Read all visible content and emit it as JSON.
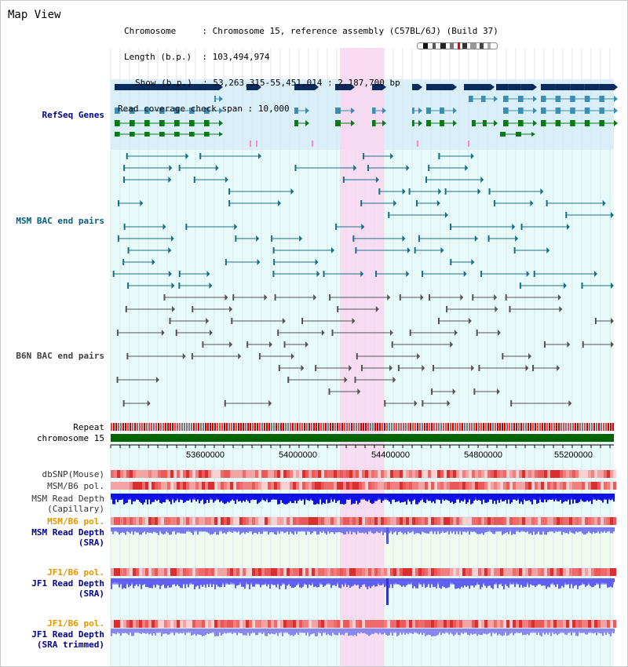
{
  "title": "Map View",
  "info": {
    "chromosome_key": "Chromosome",
    "chromosome_val": "Chromosome 15, reference assembly (C57BL/6J) (Build 37)",
    "length_key": "Length (b.p.)",
    "length_val": "103,494,974",
    "show_key": "Show (b.p.)",
    "show_val": "53,263,315-55,451,014 : 2,187,700 bp",
    "coverage_key": "Read coverage check span",
    "coverage_val": "10,000"
  },
  "tracks": {
    "refseq": "RefSeq Genes",
    "msm_bac": "MSM BAC end pairs",
    "b6n_bac": "B6N BAC end pairs",
    "repeat": "Repeat",
    "chromosome": "chromosome 15",
    "dbsnp": "dbSNP(Mouse)",
    "msm_b6_pol_1": "MSM/B6 pol.",
    "msm_depth_cap_1": "MSM Read Depth",
    "msm_depth_cap_2": "(Capillary)",
    "msm_b6_pol_2": "MSM/B6 pol.",
    "msm_depth_sra_1": "MSM Read Depth",
    "msm_depth_sra_2": "(SRA)",
    "jf1_b6_pol_1": "JF1/B6 pol.",
    "jf1_depth_sra_1": "JF1 Read Depth",
    "jf1_depth_sra_2": "(SRA)",
    "jf1_b6_pol_2": "JF1/B6 pol.",
    "jf1_depth_trim_1": "JF1 Read Depth",
    "jf1_depth_trim_2": "(SRA trimmed)"
  },
  "scale": {
    "ticks": [
      "53600000",
      "54000000",
      "54400000",
      "54800000",
      "55200000"
    ]
  },
  "colors": {
    "refseq_label": "#00008b",
    "msm_label": "#005f7f",
    "b6n_label": "#404040",
    "orange_label": "#e69500",
    "blue_label": "#00008b",
    "highlight": "#f9d6f0",
    "chromosome_bar": "#006400"
  }
}
